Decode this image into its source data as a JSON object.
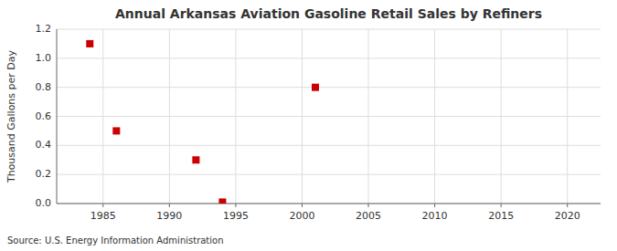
{
  "chart_data": {
    "type": "scatter",
    "title": "Annual Arkansas Aviation Gasoline Retail Sales by Refiners",
    "ylabel": "Thousand Gallons per Day",
    "annotations": [
      "Source: U.S. Energy Information Administration"
    ],
    "x": [
      1984,
      1986,
      1992,
      1994,
      2001
    ],
    "values": [
      1.1,
      0.5,
      0.3,
      0.01,
      0.8
    ],
    "color": "#cc0000",
    "marker": "square",
    "xlim": [
      1981.5,
      2022.5
    ],
    "ylim": [
      0.0,
      1.2
    ],
    "xticks": [
      1985,
      1990,
      1995,
      2000,
      2005,
      2010,
      2015,
      2020
    ],
    "yticks": [
      {
        "value": 0.0,
        "label": "0.0"
      },
      {
        "value": 0.2,
        "label": "0.2"
      },
      {
        "value": 0.4,
        "label": "0.4"
      },
      {
        "value": 0.6,
        "label": "0.6"
      },
      {
        "value": 0.8,
        "label": "0.8"
      },
      {
        "value": 1.0,
        "label": "1.0"
      },
      {
        "value": 1.2,
        "label": "1.2"
      }
    ],
    "grid": true
  }
}
